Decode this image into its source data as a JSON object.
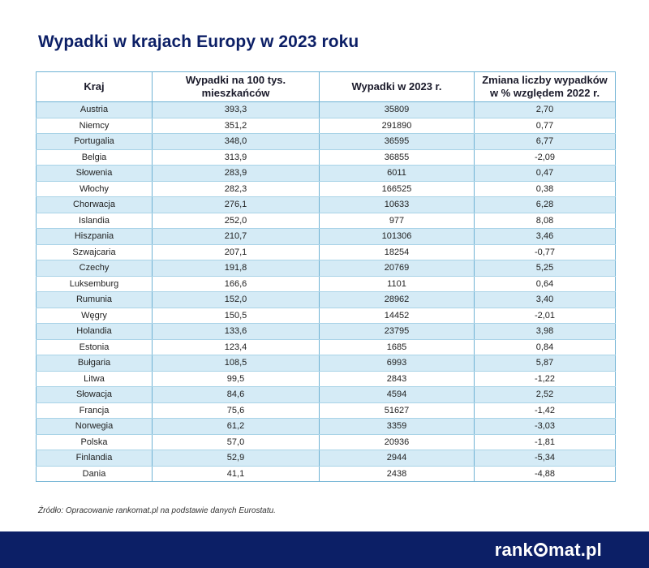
{
  "chart_data": {
    "type": "table",
    "title": "Wypadki w krajach Europy w 2023 roku",
    "columns": [
      "Kraj",
      "Wypadki na 100 tys. mieszkańców",
      "Wypadki w 2023 r.",
      "Zmiana liczby wypadków w % względem 2022 r."
    ],
    "rows": [
      [
        "Austria",
        "393,3",
        "35809",
        "2,70"
      ],
      [
        "Niemcy",
        "351,2",
        "291890",
        "0,77"
      ],
      [
        "Portugalia",
        "348,0",
        "36595",
        "6,77"
      ],
      [
        "Belgia",
        "313,9",
        "36855",
        "-2,09"
      ],
      [
        "Słowenia",
        "283,9",
        "6011",
        "0,47"
      ],
      [
        "Włochy",
        "282,3",
        "166525",
        "0,38"
      ],
      [
        "Chorwacja",
        "276,1",
        "10633",
        "6,28"
      ],
      [
        "Islandia",
        "252,0",
        "977",
        "8,08"
      ],
      [
        "Hiszpania",
        "210,7",
        "101306",
        "3,46"
      ],
      [
        "Szwajcaria",
        "207,1",
        "18254",
        "-0,77"
      ],
      [
        "Czechy",
        "191,8",
        "20769",
        "5,25"
      ],
      [
        "Luksemburg",
        "166,6",
        "1101",
        "0,64"
      ],
      [
        "Rumunia",
        "152,0",
        "28962",
        "3,40"
      ],
      [
        "Węgry",
        "150,5",
        "14452",
        "-2,01"
      ],
      [
        "Holandia",
        "133,6",
        "23795",
        "3,98"
      ],
      [
        "Estonia",
        "123,4",
        "1685",
        "0,84"
      ],
      [
        "Bułgaria",
        "108,5",
        "6993",
        "5,87"
      ],
      [
        "Litwa",
        "99,5",
        "2843",
        "-1,22"
      ],
      [
        "Słowacja",
        "84,6",
        "4594",
        "2,52"
      ],
      [
        "Francja",
        "75,6",
        "51627",
        "-1,42"
      ],
      [
        "Norwegia",
        "61,2",
        "3359",
        "-3,03"
      ],
      [
        "Polska",
        "57,0",
        "20936",
        "-1,81"
      ],
      [
        "Finlandia",
        "52,9",
        "2944",
        "-5,34"
      ],
      [
        "Dania",
        "41,1",
        "2438",
        "-4,88"
      ]
    ]
  },
  "source": "Źródło: Opracowanie rankomat.pl na podstawie danych Eurostatu.",
  "brand": {
    "logo_prefix": "rank",
    "logo_suffix": "mat.pl",
    "footer_color": "#0c1f66",
    "stripe_color": "#d5ebf6",
    "border_color": "#6fb2d4"
  }
}
